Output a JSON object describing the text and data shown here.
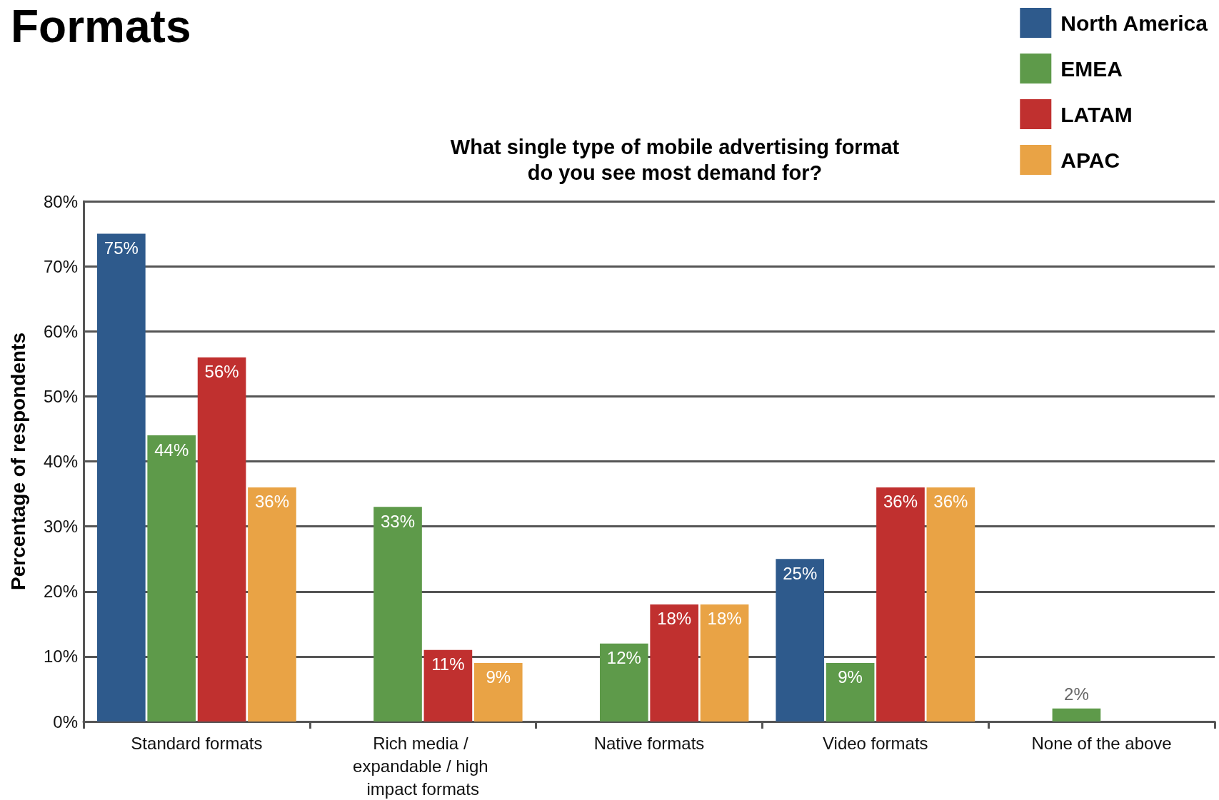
{
  "chart_data": {
    "type": "bar",
    "title": "Formats",
    "subtitle": "What single type of mobile advertising format\ndo you see most demand for?",
    "ylabel": "Percentage of respondents",
    "categories": [
      "Standard formats",
      "Rich media / expandable / high impact formats",
      "Native formats",
      "Video formats",
      "None of the above"
    ],
    "series": [
      {
        "name": "North America",
        "color": "#2e5a8c",
        "values": [
          75,
          null,
          null,
          25,
          null
        ],
        "value_labels": [
          "75%",
          null,
          null,
          "25%",
          null
        ]
      },
      {
        "name": "EMEA",
        "color": "#5e9a4a",
        "values": [
          44,
          33,
          12,
          9,
          2
        ],
        "value_labels": [
          "44%",
          "33%",
          "12%",
          "9%",
          "2%"
        ]
      },
      {
        "name": "LATAM",
        "color": "#c0302f",
        "values": [
          56,
          11,
          18,
          36,
          null
        ],
        "value_labels": [
          "56%",
          "11%",
          "18%",
          "36%",
          null
        ]
      },
      {
        "name": "APAC",
        "color": "#e9a345",
        "values": [
          36,
          9,
          18,
          36,
          null
        ],
        "value_labels": [
          "36%",
          "9%",
          "18%",
          "36%",
          null
        ]
      }
    ],
    "ylim": [
      0,
      80
    ],
    "yticks": [
      {
        "value": 0,
        "label": "0%"
      },
      {
        "value": 10,
        "label": "10%"
      },
      {
        "value": 20,
        "label": "20%"
      },
      {
        "value": 30,
        "label": "30%"
      },
      {
        "value": 40,
        "label": "40%"
      },
      {
        "value": 50,
        "label": "50%"
      },
      {
        "value": 60,
        "label": "60%"
      },
      {
        "value": 70,
        "label": "70%"
      },
      {
        "value": 80,
        "label": "80%"
      }
    ],
    "grid": "y",
    "legend": "top right"
  }
}
